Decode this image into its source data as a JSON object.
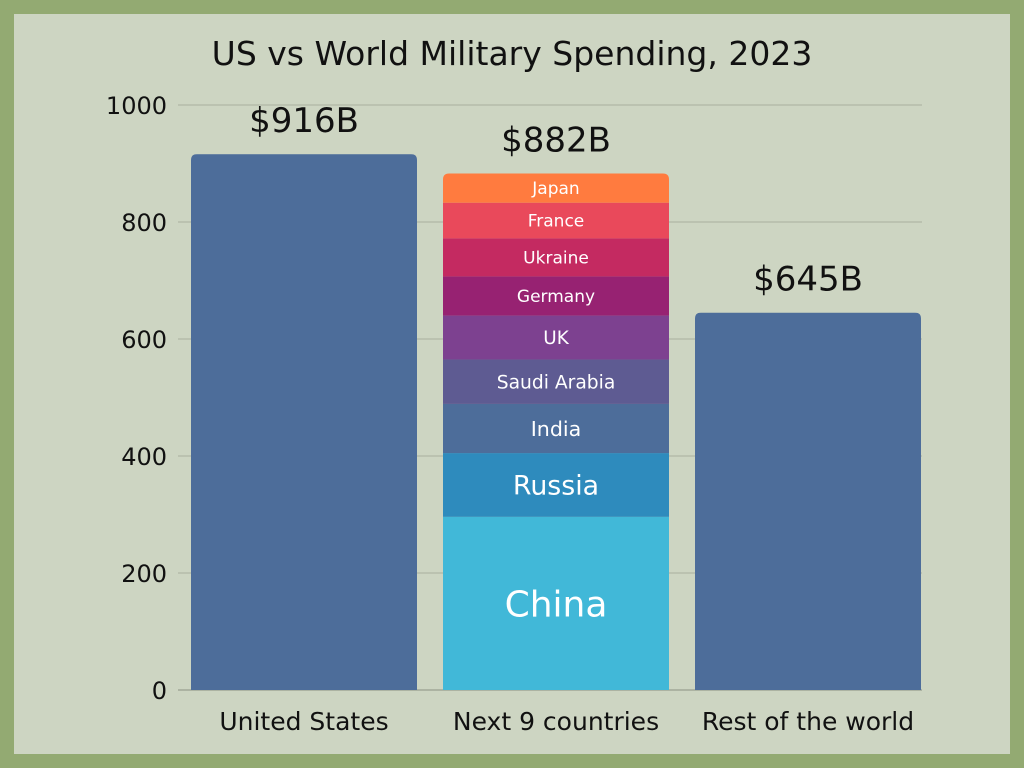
{
  "chart_data": {
    "type": "bar",
    "stacked": true,
    "title": "US vs World Military Spending, 2023",
    "xlabel": "",
    "ylabel": "",
    "ylim": [
      0,
      1000
    ],
    "yticks": [
      0,
      200,
      400,
      600,
      800,
      1000
    ],
    "grid": true,
    "categories": [
      "United States",
      "Next 9 countries",
      "Rest of the world"
    ],
    "totals": [
      916,
      882,
      645
    ],
    "total_labels": [
      "$916B",
      "$882B",
      "$645B"
    ],
    "bars": [
      {
        "category": "United States",
        "segments": [
          {
            "label": "",
            "value": 916,
            "color": "#4d6d9a"
          }
        ]
      },
      {
        "category": "Next 9 countries",
        "segments": [
          {
            "label": "China",
            "value": 296,
            "color": "#41b8d8"
          },
          {
            "label": "Russia",
            "value": 109,
            "color": "#2e8bbd"
          },
          {
            "label": "India",
            "value": 84,
            "color": "#4d6d9a"
          },
          {
            "label": "Saudi Arabia",
            "value": 76,
            "color": "#5e5b92"
          },
          {
            "label": "UK",
            "value": 75,
            "color": "#7d4190"
          },
          {
            "label": "Germany",
            "value": 67,
            "color": "#972272"
          },
          {
            "label": "Ukraine",
            "value": 65,
            "color": "#c42a61"
          },
          {
            "label": "France",
            "value": 61,
            "color": "#e9495b"
          },
          {
            "label": "Japan",
            "value": 50,
            "color": "#ff7b3f"
          }
        ]
      },
      {
        "category": "Rest of the world",
        "segments": [
          {
            "label": "",
            "value": 645,
            "color": "#4d6d9a"
          }
        ]
      }
    ]
  }
}
